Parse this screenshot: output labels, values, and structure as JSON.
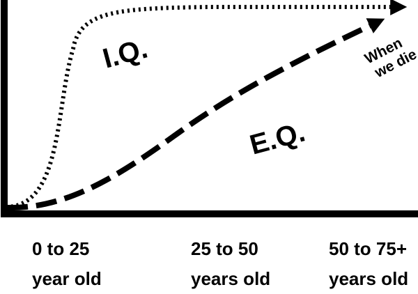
{
  "chart_data": {
    "type": "line",
    "title": "",
    "xlabel": "",
    "ylabel": "",
    "categories": [
      [
        "0 to 25",
        "year old"
      ],
      [
        "25 to 50",
        "years old"
      ],
      [
        "50 to 75+",
        "years old"
      ]
    ],
    "series": [
      {
        "name": "I.Q.",
        "style": "dotted",
        "points": [
          [
            0,
            0.03
          ],
          [
            0.1,
            0.05
          ],
          [
            0.18,
            0.4
          ],
          [
            0.28,
            0.93
          ],
          [
            0.45,
            0.98
          ],
          [
            0.7,
            0.99
          ],
          [
            1.0,
            0.99
          ]
        ]
      },
      {
        "name": "E.Q.",
        "style": "dashed",
        "points": [
          [
            0,
            0.02
          ],
          [
            0.12,
            0.04
          ],
          [
            0.25,
            0.18
          ],
          [
            0.4,
            0.4
          ],
          [
            0.55,
            0.6
          ],
          [
            0.7,
            0.77
          ],
          [
            0.85,
            0.89
          ],
          [
            1.0,
            0.98
          ]
        ]
      }
    ],
    "annotation": [
      "When",
      "we die"
    ],
    "grid": false,
    "legend": "none",
    "colors": {
      "line": "#000000",
      "axis": "#000000",
      "background": "#ffffff"
    }
  }
}
